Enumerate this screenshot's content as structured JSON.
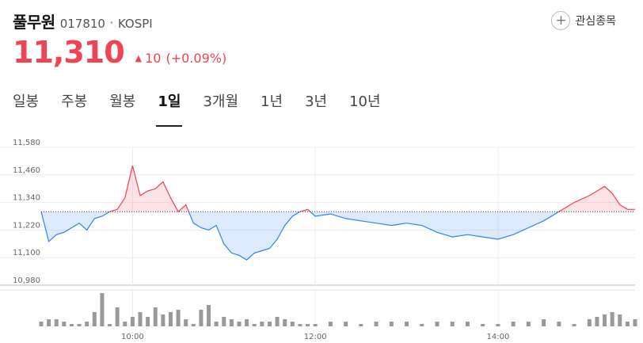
{
  "stock": {
    "name": "풀무원",
    "code": "017810",
    "market": "KOSPI",
    "price": "11,310",
    "change": "10",
    "change_pct": "(+0.09%)"
  },
  "watchlist_label": "관심종목",
  "tabs": [
    {
      "label": "일봉",
      "active": false
    },
    {
      "label": "주봉",
      "active": false
    },
    {
      "label": "월봉",
      "active": false
    },
    {
      "label": "1일",
      "active": true
    },
    {
      "label": "3개월",
      "active": false
    },
    {
      "label": "1년",
      "active": false
    },
    {
      "label": "3년",
      "active": false
    },
    {
      "label": "10년",
      "active": false
    }
  ],
  "colors": {
    "up": "#f04452",
    "down": "#3182f6"
  },
  "chart_data": {
    "type": "area",
    "ylim": [
      10980,
      11580
    ],
    "y_ticks": [
      "11,580",
      "11,460",
      "11,340",
      "11,220",
      "11,100",
      "10,980"
    ],
    "x_ticks": [
      "10:00",
      "12:00",
      "14:00"
    ],
    "baseline": 11300,
    "x_range": [
      "09:00",
      "15:30"
    ],
    "series": [
      {
        "x": [
          "09:00",
          "09:05",
          "09:10",
          "09:15",
          "09:20",
          "09:25",
          "09:30",
          "09:35",
          "09:40",
          "09:45",
          "09:50",
          "09:55",
          "10:00",
          "10:05",
          "10:10",
          "10:15",
          "10:20",
          "10:25",
          "10:30",
          "10:35",
          "10:40",
          "10:45",
          "10:50",
          "10:55",
          "11:00",
          "11:05",
          "11:10",
          "11:15",
          "11:20",
          "11:25",
          "11:30",
          "11:35",
          "11:40",
          "11:45",
          "11:50",
          "11:55",
          "12:00",
          "12:10",
          "12:20",
          "12:30",
          "12:40",
          "12:50",
          "13:00",
          "13:10",
          "13:20",
          "13:30",
          "13:40",
          "13:50",
          "14:00",
          "14:10",
          "14:20",
          "14:30",
          "14:40",
          "14:50",
          "15:00",
          "15:05",
          "15:10",
          "15:15",
          "15:20",
          "15:25",
          "15:30"
        ],
        "values": [
          11300,
          11170,
          11200,
          11210,
          11230,
          11250,
          11220,
          11270,
          11280,
          11300,
          11310,
          11360,
          11500,
          11370,
          11390,
          11400,
          11430,
          11360,
          11300,
          11330,
          11250,
          11230,
          11220,
          11240,
          11160,
          11120,
          11110,
          11090,
          11120,
          11130,
          11140,
          11180,
          11240,
          11280,
          11300,
          11310,
          11280,
          11290,
          11270,
          11260,
          11250,
          11240,
          11250,
          11240,
          11210,
          11190,
          11200,
          11190,
          11180,
          11200,
          11230,
          11260,
          11300,
          11340,
          11370,
          11390,
          11410,
          11380,
          11330,
          11310,
          11310
        ]
      }
    ],
    "volume": [
      2,
      3,
      3,
      2,
      1,
      1,
      2,
      6,
      14,
      1,
      8,
      2,
      4,
      6,
      4,
      8,
      5,
      6,
      7,
      3,
      1,
      7,
      9,
      2,
      4,
      3,
      2,
      3,
      1,
      2,
      2,
      4,
      3,
      2,
      1,
      1,
      1,
      2,
      2,
      1,
      2,
      2,
      2,
      1,
      2,
      2,
      2,
      1,
      1,
      2,
      2,
      3,
      2,
      1,
      3,
      4,
      5,
      6,
      5,
      2,
      3
    ]
  }
}
